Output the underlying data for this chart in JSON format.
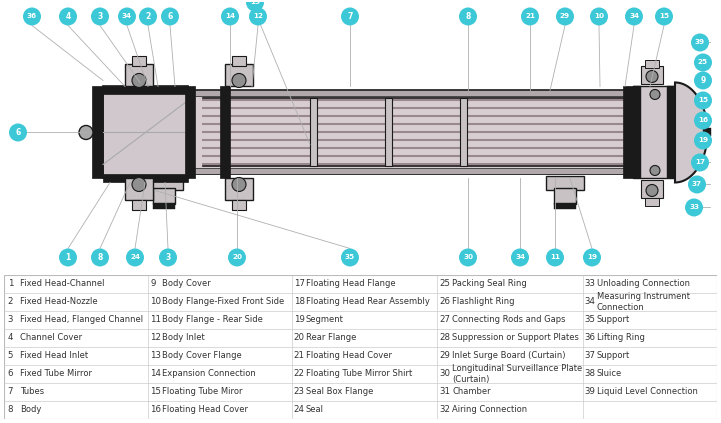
{
  "bg_color": "#ffffff",
  "table_data": [
    [
      1,
      "Fixed Head-Channel",
      9,
      "Body Cover",
      17,
      "Floating Head Flange",
      25,
      "Packing Seal Ring",
      33,
      "Unloading Connection"
    ],
    [
      2,
      "Fixed Head-Nozzle",
      10,
      "Body Flange-Fixed Front Side",
      18,
      "Floating Head Rear Assembly",
      26,
      "Flashlight Ring",
      34,
      "Measuring Instrument\nConnection"
    ],
    [
      3,
      "Fixed Head, Flanged Channel",
      11,
      "Body Flange - Rear Side",
      19,
      "Segment",
      27,
      "Connecting Rods and Gaps",
      35,
      "Support"
    ],
    [
      4,
      "Channel Cover",
      12,
      "Body Inlet",
      20,
      "Rear Flange",
      28,
      "Suppression or Support Plates",
      36,
      "Lifting Ring"
    ],
    [
      5,
      "Fixed Head Inlet",
      13,
      "Body Cover Flange",
      21,
      "Floating Head Cover",
      29,
      "Inlet Surge Board (Curtain)",
      37,
      "Support"
    ],
    [
      6,
      "Fixed Tube Mirror",
      14,
      "Expansion Connection",
      22,
      "Floating Tube Mirror Shirt",
      30,
      "Longitudinal Surveillance Plate\n(Curtain)",
      38,
      "Sluice"
    ],
    [
      7,
      "Tubes",
      15,
      "Floating Tube Miror",
      23,
      "Seal Box Flange",
      31,
      "Chamber",
      39,
      "Liquid Level Connection"
    ],
    [
      8,
      "Body",
      16,
      "Floating Head Cover",
      24,
      "Seal",
      32,
      "Airing Connection",
      null,
      null
    ]
  ],
  "bubble_color": "#3dc8d8",
  "bubble_text_color": "#ffffff",
  "line_color": "#aaaaaa",
  "shell_color": "#d8cdd0",
  "tube_fill": "#cdbcbf",
  "head_color": "#d0c8cc",
  "black_color": "#1a1a1a",
  "support_color": "#c8c2c4",
  "dark_band": "#b0a8aa"
}
